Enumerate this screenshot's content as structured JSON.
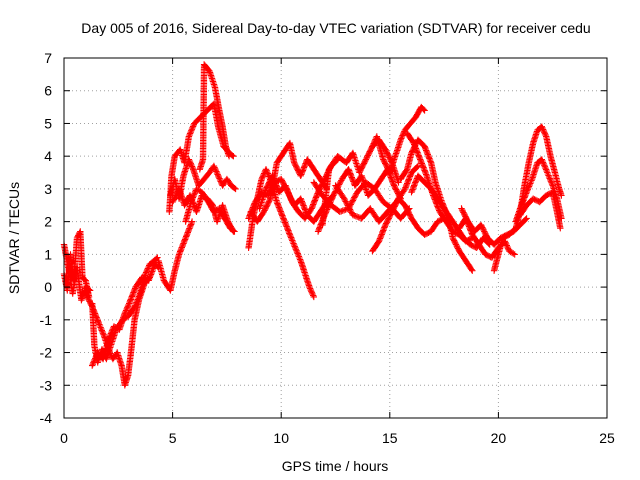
{
  "chart_data": {
    "type": "scatter",
    "title": "Day 005 of 2016, Sidereal Day-to-day VTEC variation (SDTVAR) for receiver cedu",
    "xlabel": "GPS time / hours",
    "ylabel": "SDTVAR / TECUs",
    "xlim": [
      0,
      25
    ],
    "ylim": [
      -4,
      7
    ],
    "xticks": [
      0,
      5,
      10,
      15,
      20,
      25
    ],
    "yticks": [
      -4,
      -3,
      -2,
      -1,
      0,
      1,
      2,
      3,
      4,
      5,
      6,
      7
    ],
    "grid": true,
    "legend": "none",
    "marker": "+",
    "color": "#ff0000",
    "tracks": [
      [
        [
          0.0,
          0.4
        ],
        [
          0.15,
          -0.1
        ],
        [
          0.3,
          1.0
        ],
        [
          0.45,
          0.2
        ],
        [
          0.6,
          1.5
        ],
        [
          0.75,
          1.7
        ],
        [
          0.85,
          0.3
        ],
        [
          1.0,
          0.2
        ],
        [
          1.15,
          -0.3
        ]
      ],
      [
        [
          0.0,
          1.3
        ],
        [
          0.2,
          0.6
        ],
        [
          0.4,
          -0.2
        ],
        [
          0.6,
          0.6
        ],
        [
          0.8,
          -0.4
        ],
        [
          1.0,
          0.0
        ],
        [
          1.2,
          -0.1
        ]
      ],
      [
        [
          1.3,
          -0.5
        ],
        [
          1.4,
          -1.8
        ],
        [
          1.55,
          -2.3
        ],
        [
          1.75,
          -1.9
        ],
        [
          1.95,
          -2.2
        ],
        [
          2.15,
          -1.8
        ],
        [
          2.4,
          -1.3
        ],
        [
          2.7,
          -1.0
        ],
        [
          2.95,
          -0.9
        ],
        [
          3.25,
          -0.6
        ],
        [
          3.5,
          -0.2
        ],
        [
          3.75,
          0.4
        ],
        [
          3.95,
          0.7
        ],
        [
          4.15,
          0.8
        ],
        [
          4.3,
          0.9
        ]
      ],
      [
        [
          1.3,
          -2.4
        ],
        [
          1.55,
          -2.0
        ],
        [
          1.8,
          -2.2
        ],
        [
          2.05,
          -1.6
        ],
        [
          2.3,
          -1.2
        ],
        [
          2.55,
          -1.3
        ],
        [
          2.8,
          -0.8
        ],
        [
          3.0,
          -0.5
        ],
        [
          3.3,
          0.0
        ],
        [
          3.6,
          0.3
        ],
        [
          3.9,
          0.2
        ],
        [
          4.2,
          0.8
        ]
      ],
      [
        [
          1.0,
          -0.2
        ],
        [
          1.3,
          -0.6
        ],
        [
          1.6,
          -1.1
        ],
        [
          1.85,
          -1.5
        ],
        [
          2.05,
          -1.9
        ],
        [
          2.25,
          -2.2
        ],
        [
          2.45,
          -2.0
        ],
        [
          2.65,
          -2.4
        ],
        [
          2.8,
          -3.0
        ],
        [
          2.95,
          -2.7
        ],
        [
          3.1,
          -1.9
        ],
        [
          3.25,
          -1.0
        ],
        [
          3.45,
          -0.4
        ],
        [
          3.7,
          0.1
        ],
        [
          3.95,
          0.3
        ],
        [
          4.2,
          0.7
        ],
        [
          4.35,
          0.6
        ]
      ],
      [
        [
          4.35,
          0.8
        ],
        [
          4.6,
          0.2
        ],
        [
          4.9,
          -0.1
        ],
        [
          5.1,
          0.5
        ],
        [
          5.3,
          1.0
        ],
        [
          5.6,
          1.5
        ],
        [
          5.9,
          2.0
        ]
      ],
      [
        [
          4.85,
          2.3
        ],
        [
          4.95,
          3.4
        ],
        [
          5.1,
          4.0
        ],
        [
          5.35,
          4.2
        ],
        [
          5.55,
          3.8
        ],
        [
          5.75,
          4.6
        ],
        [
          6.0,
          5.0
        ],
        [
          6.3,
          5.2
        ],
        [
          6.6,
          5.4
        ],
        [
          6.9,
          5.6
        ],
        [
          7.1,
          4.9
        ],
        [
          7.35,
          4.3
        ],
        [
          7.6,
          4.1
        ],
        [
          7.8,
          4.0
        ]
      ],
      [
        [
          4.9,
          2.8
        ],
        [
          5.1,
          3.3
        ],
        [
          5.3,
          2.7
        ],
        [
          5.5,
          3.4
        ],
        [
          5.75,
          3.9
        ],
        [
          5.95,
          3.6
        ],
        [
          6.2,
          3.1
        ],
        [
          6.45,
          3.3
        ],
        [
          6.7,
          3.5
        ],
        [
          6.9,
          3.7
        ],
        [
          7.1,
          3.4
        ],
        [
          7.3,
          3.1
        ],
        [
          7.5,
          3.3
        ],
        [
          7.7,
          3.1
        ],
        [
          7.9,
          3.0
        ]
      ],
      [
        [
          5.0,
          2.6
        ],
        [
          5.3,
          3.0
        ],
        [
          5.55,
          2.5
        ],
        [
          5.8,
          2.8
        ],
        [
          6.1,
          2.3
        ],
        [
          6.35,
          2.8
        ],
        [
          6.6,
          2.7
        ],
        [
          6.85,
          2.5
        ],
        [
          7.05,
          2.0
        ],
        [
          7.3,
          2.5
        ],
        [
          7.55,
          2.0
        ],
        [
          7.8,
          1.7
        ]
      ],
      [
        [
          6.25,
          3.6
        ],
        [
          6.4,
          3.9
        ],
        [
          6.45,
          6.8
        ],
        [
          6.7,
          6.6
        ],
        [
          6.95,
          6.1
        ],
        [
          7.15,
          5.4
        ],
        [
          7.3,
          4.9
        ],
        [
          7.45,
          4.3
        ],
        [
          7.6,
          4.0
        ]
      ],
      [
        [
          5.6,
          2.0
        ],
        [
          5.85,
          2.6
        ],
        [
          6.1,
          3.0
        ],
        [
          6.35,
          2.9
        ],
        [
          6.65,
          2.6
        ],
        [
          6.9,
          2.3
        ],
        [
          7.15,
          2.4
        ],
        [
          7.4,
          2.1
        ],
        [
          7.65,
          1.8
        ],
        [
          7.85,
          1.7
        ]
      ],
      [
        [
          8.5,
          1.2
        ],
        [
          8.7,
          2.1
        ],
        [
          8.9,
          2.7
        ],
        [
          9.1,
          3.3
        ],
        [
          9.3,
          3.6
        ],
        [
          9.55,
          3.2
        ],
        [
          9.8,
          2.6
        ],
        [
          10.1,
          2.1
        ],
        [
          10.4,
          1.6
        ],
        [
          10.65,
          1.2
        ],
        [
          10.9,
          0.8
        ],
        [
          11.1,
          0.4
        ],
        [
          11.3,
          0.0
        ],
        [
          11.5,
          -0.3
        ]
      ],
      [
        [
          8.5,
          2.1
        ],
        [
          8.8,
          2.6
        ],
        [
          9.1,
          2.9
        ],
        [
          9.4,
          2.8
        ],
        [
          9.7,
          3.2
        ],
        [
          10.0,
          3.3
        ],
        [
          10.3,
          2.9
        ],
        [
          10.6,
          2.5
        ],
        [
          10.9,
          2.7
        ],
        [
          11.2,
          2.2
        ],
        [
          11.5,
          2.0
        ],
        [
          11.8,
          2.3
        ],
        [
          12.1,
          2.6
        ],
        [
          12.4,
          2.8
        ]
      ],
      [
        [
          8.6,
          2.3
        ],
        [
          8.9,
          2.0
        ],
        [
          9.2,
          2.3
        ],
        [
          9.5,
          2.7
        ],
        [
          9.8,
          3.8
        ],
        [
          10.1,
          4.1
        ],
        [
          10.4,
          4.4
        ],
        [
          10.6,
          3.8
        ],
        [
          10.9,
          3.4
        ],
        [
          11.2,
          3.9
        ],
        [
          11.5,
          3.6
        ],
        [
          11.8,
          3.3
        ],
        [
          12.1,
          3.0
        ]
      ],
      [
        [
          9.0,
          2.4
        ],
        [
          9.3,
          3.0
        ],
        [
          9.6,
          3.4
        ],
        [
          9.9,
          2.9
        ],
        [
          10.2,
          3.1
        ],
        [
          10.5,
          2.6
        ],
        [
          10.8,
          2.3
        ],
        [
          11.1,
          2.1
        ],
        [
          11.4,
          2.4
        ],
        [
          11.7,
          2.9
        ],
        [
          12.0,
          3.3
        ],
        [
          12.3,
          3.7
        ],
        [
          12.6,
          3.9
        ]
      ],
      [
        [
          11.7,
          1.7
        ],
        [
          12.0,
          2.2
        ],
        [
          12.4,
          2.8
        ],
        [
          12.8,
          3.3
        ],
        [
          13.1,
          3.6
        ],
        [
          13.4,
          3.1
        ],
        [
          13.7,
          3.4
        ],
        [
          14.0,
          2.8
        ],
        [
          14.3,
          3.0
        ],
        [
          14.6,
          3.3
        ],
        [
          14.9,
          3.6
        ],
        [
          15.2,
          3.1
        ],
        [
          15.5,
          2.7
        ]
      ],
      [
        [
          11.5,
          3.2
        ],
        [
          11.9,
          2.8
        ],
        [
          12.3,
          2.5
        ],
        [
          12.7,
          2.3
        ],
        [
          13.1,
          2.4
        ],
        [
          13.5,
          2.9
        ],
        [
          13.9,
          3.2
        ],
        [
          14.3,
          3.0
        ],
        [
          14.7,
          2.6
        ],
        [
          15.1,
          2.4
        ],
        [
          15.5,
          2.1
        ],
        [
          15.9,
          2.4
        ]
      ],
      [
        [
          11.9,
          1.9
        ],
        [
          12.2,
          3.6
        ],
        [
          12.6,
          4.0
        ],
        [
          13.0,
          3.8
        ],
        [
          13.3,
          4.1
        ],
        [
          13.6,
          3.5
        ],
        [
          13.9,
          3.9
        ],
        [
          14.2,
          4.3
        ],
        [
          14.5,
          4.5
        ],
        [
          14.8,
          4.2
        ],
        [
          15.1,
          3.8
        ],
        [
          15.4,
          3.2
        ]
      ],
      [
        [
          12.5,
          3.1
        ],
        [
          12.9,
          2.7
        ],
        [
          13.3,
          2.2
        ],
        [
          13.7,
          2.1
        ],
        [
          14.1,
          2.4
        ],
        [
          14.5,
          2.0
        ],
        [
          14.9,
          2.3
        ],
        [
          15.3,
          2.6
        ],
        [
          15.7,
          3.0
        ],
        [
          16.0,
          3.5
        ],
        [
          16.3,
          3.7
        ]
      ],
      [
        [
          14.2,
          1.1
        ],
        [
          14.5,
          1.4
        ],
        [
          14.8,
          1.9
        ],
        [
          15.1,
          2.3
        ],
        [
          15.4,
          2.7
        ],
        [
          15.7,
          2.5
        ],
        [
          16.0,
          2.1
        ],
        [
          16.3,
          1.8
        ],
        [
          16.6,
          1.6
        ],
        [
          16.9,
          1.7
        ],
        [
          17.2,
          2.0
        ],
        [
          17.5,
          2.1
        ]
      ],
      [
        [
          14.2,
          4.3
        ],
        [
          14.4,
          4.6
        ],
        [
          14.7,
          3.9
        ],
        [
          15.0,
          3.5
        ],
        [
          15.2,
          3.9
        ],
        [
          15.5,
          4.5
        ],
        [
          15.7,
          4.8
        ],
        [
          15.95,
          5.0
        ],
        [
          16.2,
          5.2
        ],
        [
          16.45,
          5.5
        ],
        [
          16.6,
          5.4
        ]
      ],
      [
        [
          15.5,
          3.3
        ],
        [
          15.8,
          3.6
        ],
        [
          16.0,
          4.1
        ],
        [
          16.3,
          4.5
        ],
        [
          16.6,
          4.3
        ],
        [
          16.9,
          3.8
        ],
        [
          17.1,
          3.2
        ],
        [
          17.4,
          2.6
        ],
        [
          17.7,
          2.1
        ],
        [
          17.9,
          1.5
        ],
        [
          18.2,
          1.1
        ],
        [
          18.5,
          0.8
        ],
        [
          18.8,
          0.5
        ]
      ],
      [
        [
          16.0,
          2.9
        ],
        [
          16.3,
          3.4
        ],
        [
          16.6,
          3.2
        ],
        [
          16.9,
          3.0
        ],
        [
          17.2,
          2.7
        ],
        [
          17.5,
          2.4
        ],
        [
          17.8,
          2.1
        ],
        [
          18.1,
          1.8
        ],
        [
          18.4,
          1.5
        ],
        [
          18.7,
          1.3
        ],
        [
          19.0,
          1.2
        ],
        [
          19.3,
          1.5
        ],
        [
          19.6,
          1.3
        ]
      ],
      [
        [
          15.8,
          4.7
        ],
        [
          16.1,
          4.4
        ],
        [
          16.4,
          3.9
        ],
        [
          16.7,
          3.4
        ],
        [
          17.0,
          2.8
        ],
        [
          17.3,
          2.3
        ],
        [
          17.6,
          2.0
        ],
        [
          17.9,
          1.7
        ],
        [
          18.2,
          1.6
        ],
        [
          18.5,
          1.4
        ],
        [
          18.8,
          1.5
        ]
      ],
      [
        [
          18.2,
          1.8
        ],
        [
          18.5,
          2.1
        ],
        [
          18.8,
          1.6
        ],
        [
          19.1,
          1.3
        ],
        [
          19.4,
          1.0
        ],
        [
          19.7,
          0.9
        ],
        [
          20.0,
          1.2
        ],
        [
          20.3,
          1.4
        ],
        [
          20.5,
          1.1
        ],
        [
          20.75,
          1.0
        ]
      ],
      [
        [
          18.3,
          2.4
        ],
        [
          18.6,
          2.0
        ],
        [
          18.9,
          1.7
        ],
        [
          19.2,
          1.9
        ],
        [
          19.5,
          1.5
        ],
        [
          19.8,
          1.3
        ],
        [
          20.1,
          1.5
        ],
        [
          20.4,
          1.6
        ],
        [
          20.7,
          1.7
        ],
        [
          21.0,
          1.9
        ],
        [
          21.3,
          2.1
        ]
      ],
      [
        [
          19.8,
          0.5
        ],
        [
          20.0,
          1.0
        ],
        [
          20.2,
          1.5
        ],
        [
          20.5,
          1.6
        ],
        [
          20.8,
          1.8
        ],
        [
          21.0,
          2.3
        ],
        [
          21.2,
          3.1
        ],
        [
          21.4,
          3.8
        ],
        [
          21.6,
          4.4
        ],
        [
          21.8,
          4.8
        ],
        [
          22.0,
          4.9
        ],
        [
          22.2,
          4.6
        ],
        [
          22.4,
          4.0
        ],
        [
          22.6,
          3.5
        ],
        [
          22.8,
          3.0
        ],
        [
          22.9,
          2.8
        ]
      ],
      [
        [
          20.8,
          2.0
        ],
        [
          21.0,
          2.4
        ],
        [
          21.3,
          2.9
        ],
        [
          21.55,
          3.3
        ],
        [
          21.8,
          3.8
        ],
        [
          22.0,
          3.9
        ],
        [
          22.25,
          3.5
        ],
        [
          22.5,
          3.1
        ],
        [
          22.7,
          2.7
        ],
        [
          22.9,
          2.1
        ]
      ],
      [
        [
          21.0,
          2.2
        ],
        [
          21.3,
          2.5
        ],
        [
          21.6,
          2.7
        ],
        [
          21.9,
          2.6
        ],
        [
          22.2,
          2.8
        ],
        [
          22.5,
          2.9
        ],
        [
          22.7,
          2.3
        ],
        [
          22.85,
          1.8
        ]
      ]
    ]
  }
}
